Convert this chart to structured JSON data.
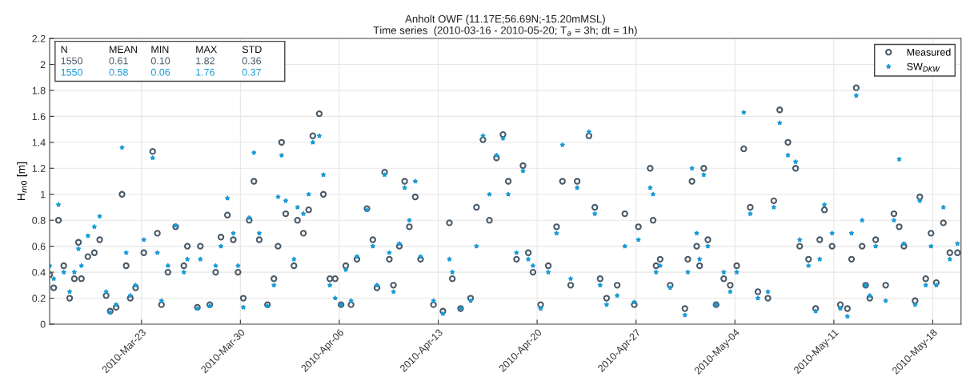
{
  "chart_data": {
    "type": "scatter",
    "title": "Anholt OWF (11.17E;56.69N;-15.20mMSL)",
    "subtitle": "Time series  (2010-03-16 - 2010-05-20; T$_{a}$ = 3h; dt = 1h)",
    "ylabel": "H$_{m0}$ [m]",
    "x": [
      "2010-03-16T12:00",
      "2010-03-16T19:00",
      "2010-03-17T03:00",
      "2010-03-17T12:00",
      "2010-03-17T22:00",
      "2010-03-18T06:00",
      "2010-03-18T13:00",
      "2010-03-18T18:00",
      "2010-03-19T05:00",
      "2010-03-19T16:00",
      "2010-03-20T01:00",
      "2010-03-20T12:00",
      "2010-03-20T19:00",
      "2010-03-21T05:00",
      "2010-03-21T15:00",
      "2010-03-21T22:00",
      "2010-03-22T05:00",
      "2010-03-22T14:00",
      "2010-03-23T04:00",
      "2010-03-23T19:00",
      "2010-03-24T03:00",
      "2010-03-24T10:00",
      "2010-03-24T21:00",
      "2010-03-25T10:00",
      "2010-03-26T00:00",
      "2010-03-26T06:00",
      "2010-03-26T23:00",
      "2010-03-27T04:00",
      "2010-03-27T20:00",
      "2010-03-28T06:00",
      "2010-03-28T15:00",
      "2010-03-29T02:00",
      "2010-03-29T12:00",
      "2010-03-29T20:00",
      "2010-03-30T05:00",
      "2010-03-30T15:00",
      "2010-03-30T23:00",
      "2010-03-31T08:00",
      "2010-03-31T22:00",
      "2010-04-01T09:00",
      "2010-04-01T16:00",
      "2010-04-01T22:00",
      "2010-04-02T05:00",
      "2010-04-02T19:00",
      "2010-04-03T01:00",
      "2010-04-03T11:00",
      "2010-04-03T20:00",
      "2010-04-04T03:00",
      "2010-04-04T14:00",
      "2010-04-04T21:00",
      "2010-04-05T08:00",
      "2010-04-05T17:00",
      "2010-04-06T03:00",
      "2010-04-06T11:00",
      "2010-04-06T20:00",
      "2010-04-07T06:00",
      "2010-04-07T23:00",
      "2010-04-08T09:00",
      "2010-04-08T16:00",
      "2010-04-09T05:00",
      "2010-04-09T13:00",
      "2010-04-09T20:00",
      "2010-04-10T06:00",
      "2010-04-10T15:00",
      "2010-04-10T23:00",
      "2010-04-11T09:00",
      "2010-04-11T18:00",
      "2010-04-12T16:00",
      "2010-04-13T08:00",
      "2010-04-13T19:00",
      "2010-04-14T00:00",
      "2010-04-14T14:00",
      "2010-04-15T07:00",
      "2010-04-15T17:00",
      "2010-04-16T04:00",
      "2010-04-16T15:00",
      "2010-04-17T03:00",
      "2010-04-17T14:00",
      "2010-04-17T23:00",
      "2010-04-18T13:00",
      "2010-04-19T00:00",
      "2010-04-19T09:00",
      "2010-04-19T17:00",
      "2010-04-20T06:00",
      "2010-04-20T19:00",
      "2010-04-21T09:00",
      "2010-04-21T19:00",
      "2010-04-22T09:00",
      "2010-04-22T20:00",
      "2010-04-23T16:00",
      "2010-04-24T02:00",
      "2010-04-24T11:00",
      "2010-04-24T22:00",
      "2010-04-25T16:00",
      "2010-04-26T05:00",
      "2010-04-26T21:00",
      "2010-04-27T04:00",
      "2010-04-28T00:00",
      "2010-04-28T05:00",
      "2010-04-28T10:00",
      "2010-04-28T17:00",
      "2010-04-29T10:00",
      "2010-04-30T11:00",
      "2010-04-30T16:00",
      "2010-04-30T23:00",
      "2010-05-01T07:00",
      "2010-05-01T12:00",
      "2010-05-01T19:00",
      "2010-05-02T02:00",
      "2010-05-02T16:00",
      "2010-05-03T05:00",
      "2010-05-03T16:00",
      "2010-05-04T03:00",
      "2010-05-04T15:00",
      "2010-05-05T02:00",
      "2010-05-05T15:00",
      "2010-05-06T08:00",
      "2010-05-06T18:00",
      "2010-05-07T04:00",
      "2010-05-07T18:00",
      "2010-05-08T07:00",
      "2010-05-08T14:00",
      "2010-05-09T05:00",
      "2010-05-09T17:00",
      "2010-05-10T00:00",
      "2010-05-10T08:00",
      "2010-05-10T21:00",
      "2010-05-11T11:00",
      "2010-05-11T23:00",
      "2010-05-12T06:00",
      "2010-05-12T14:00",
      "2010-05-13T00:00",
      "2010-05-13T06:00",
      "2010-05-13T13:00",
      "2010-05-13T23:00",
      "2010-05-14T16:00",
      "2010-05-15T06:00",
      "2010-05-15T15:00",
      "2010-05-15T23:00",
      "2010-05-16T18:00",
      "2010-05-17T02:00",
      "2010-05-17T12:00",
      "2010-05-17T21:00",
      "2010-05-18T06:00",
      "2010-05-18T18:00",
      "2010-05-19T05:00",
      "2010-05-19T18:00"
    ],
    "series": [
      {
        "name": "Measured",
        "color": "#4a5a68",
        "marker": "circle",
        "values": [
          0.38,
          0.28,
          0.8,
          0.45,
          0.2,
          0.35,
          0.63,
          0.35,
          0.52,
          0.55,
          0.65,
          0.22,
          0.1,
          0.13,
          1.0,
          0.45,
          0.2,
          0.28,
          0.55,
          1.33,
          0.7,
          0.15,
          0.4,
          0.75,
          0.45,
          0.6,
          0.13,
          0.6,
          0.15,
          0.4,
          0.67,
          0.84,
          0.65,
          0.4,
          0.2,
          0.8,
          1.1,
          0.65,
          0.15,
          0.35,
          0.6,
          1.4,
          0.85,
          0.45,
          0.8,
          0.7,
          0.88,
          1.45,
          1.62,
          1.0,
          0.35,
          0.35,
          0.15,
          0.45,
          0.15,
          0.5,
          0.89,
          0.65,
          0.28,
          1.17,
          0.5,
          0.3,
          0.6,
          1.1,
          0.75,
          0.98,
          0.5,
          0.15,
          0.1,
          0.78,
          0.35,
          0.12,
          0.2,
          0.9,
          1.42,
          0.8,
          1.28,
          1.46,
          1.1,
          0.5,
          1.22,
          0.55,
          0.4,
          0.15,
          0.45,
          0.75,
          1.1,
          0.3,
          1.1,
          1.45,
          0.9,
          0.35,
          0.2,
          0.3,
          0.85,
          0.15,
          0.75,
          1.2,
          0.8,
          0.45,
          0.5,
          0.3,
          0.12,
          0.5,
          1.1,
          0.6,
          0.45,
          1.2,
          0.65,
          0.15,
          0.35,
          0.3,
          0.45,
          1.35,
          0.9,
          0.25,
          0.2,
          0.95,
          1.65,
          1.4,
          1.2,
          0.6,
          0.5,
          0.12,
          0.65,
          0.88,
          0.6,
          0.15,
          0.12,
          0.5,
          1.82,
          0.6,
          0.3,
          0.2,
          0.65,
          0.3,
          0.85,
          0.75,
          0.6,
          0.18,
          0.98,
          0.35,
          0.7,
          0.32,
          0.78,
          0.55,
          0.55
        ]
      },
      {
        "name": "SW$_{DKW}$",
        "color": "#1a9ad6",
        "marker": "star",
        "values": [
          0.45,
          0.35,
          0.92,
          0.4,
          0.25,
          0.4,
          0.58,
          0.45,
          0.68,
          0.75,
          0.83,
          0.25,
          0.09,
          0.15,
          1.36,
          0.55,
          0.22,
          0.3,
          0.65,
          1.28,
          0.55,
          0.18,
          0.45,
          0.76,
          0.4,
          0.5,
          0.12,
          0.5,
          0.14,
          0.45,
          0.6,
          0.97,
          0.7,
          0.45,
          0.13,
          0.82,
          1.32,
          0.7,
          0.14,
          0.3,
          0.98,
          1.3,
          0.95,
          0.5,
          0.9,
          0.85,
          1.0,
          1.4,
          1.45,
          1.15,
          0.3,
          0.2,
          0.15,
          0.42,
          0.18,
          0.52,
          0.88,
          0.6,
          0.3,
          1.15,
          0.55,
          0.25,
          0.62,
          1.05,
          0.8,
          1.1,
          0.52,
          0.18,
          0.08,
          0.5,
          0.4,
          0.12,
          0.18,
          0.6,
          1.45,
          1.0,
          1.3,
          1.43,
          1.0,
          0.55,
          1.18,
          0.5,
          0.45,
          0.12,
          0.4,
          0.7,
          1.38,
          0.35,
          1.05,
          1.48,
          0.85,
          0.3,
          0.15,
          0.22,
          0.6,
          0.17,
          0.65,
          1.05,
          1.0,
          0.4,
          0.45,
          0.28,
          0.07,
          0.4,
          1.2,
          0.7,
          0.5,
          1.15,
          0.6,
          0.15,
          0.4,
          0.25,
          0.4,
          1.63,
          0.85,
          0.2,
          0.25,
          0.9,
          1.55,
          1.3,
          1.25,
          0.65,
          0.45,
          0.1,
          0.5,
          0.92,
          0.7,
          0.12,
          0.06,
          0.7,
          1.76,
          0.8,
          0.3,
          0.22,
          0.6,
          0.18,
          0.8,
          1.27,
          0.62,
          0.15,
          0.95,
          0.3,
          0.6,
          0.3,
          0.9,
          0.5,
          0.62
        ]
      }
    ],
    "xlim": [
      "2010-03-16T12:00",
      "2010-05-20T00:00"
    ],
    "xticks": [
      {
        "value": "2010-03-23",
        "label": "2010-Mar-23"
      },
      {
        "value": "2010-03-30",
        "label": "2010-Mar-30"
      },
      {
        "value": "2010-04-06",
        "label": "2010-Apr-06"
      },
      {
        "value": "2010-04-13",
        "label": "2010-Apr-13"
      },
      {
        "value": "2010-04-20",
        "label": "2010-Apr-20"
      },
      {
        "value": "2010-04-27",
        "label": "2010-Apr-27"
      },
      {
        "value": "2010-05-04",
        "label": "2010-May-04"
      },
      {
        "value": "2010-05-11",
        "label": "2010-May-11"
      },
      {
        "value": "2010-05-18",
        "label": "2010-May-18"
      }
    ],
    "ylim": [
      0,
      2.2
    ],
    "yticks": [
      0,
      0.2,
      0.4,
      0.6,
      0.8,
      1,
      1.2,
      1.4,
      1.6,
      1.8,
      2,
      2.2
    ],
    "grid": true,
    "legend": "top right",
    "annotations": [
      "N",
      "MEAN",
      "MIN",
      "MAX",
      "STD",
      "1550",
      "0.61",
      "0.10",
      "1.82",
      "0.36",
      "1550",
      "0.58",
      "0.06",
      "1.76",
      "0.37"
    ]
  }
}
